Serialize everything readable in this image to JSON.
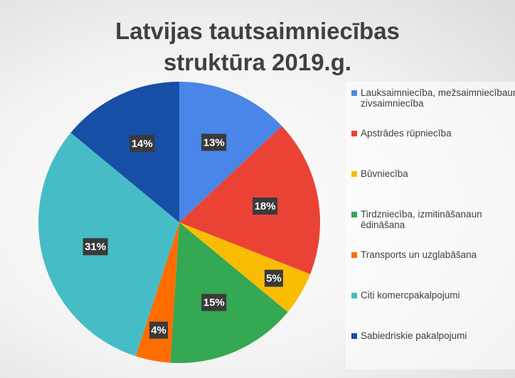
{
  "chart_data": {
    "type": "pie",
    "title": "Latvijas tautsaimniecības struktūra 2019.g.",
    "categories": [
      "Lauksaimniecība, mežsaimniecībaun zivsaimniecība",
      "Apstrādes rūpniecība",
      "Būvniecība",
      "Tirdzniecība, izmitināšanaun ēdināšana",
      "Transports un uzglabāšana",
      "Citi komercpakalpojumi",
      "Sabiedriskie pakalpojumi"
    ],
    "values": [
      13,
      18,
      5,
      15,
      4,
      31,
      14
    ],
    "value_labels": [
      "13%",
      "18%",
      "5%",
      "15%",
      "4%",
      "31%",
      "14%"
    ],
    "colors": [
      "#4a86e8",
      "#ea4335",
      "#fbbc04",
      "#34a853",
      "#ff6d01",
      "#46bdc6",
      "#174ea6"
    ],
    "legend": "right"
  }
}
